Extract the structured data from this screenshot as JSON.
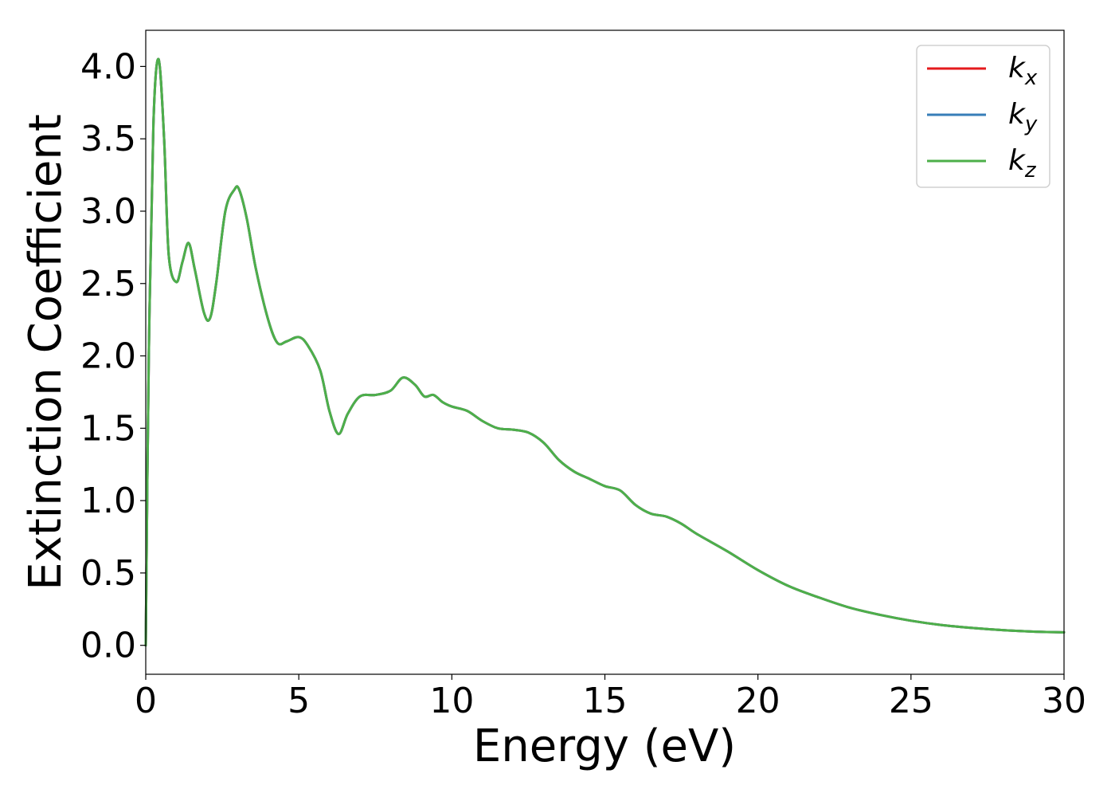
{
  "chart_data": {
    "type": "line",
    "title": "",
    "xlabel": "Energy (eV)",
    "ylabel": "Extinction Coefficient",
    "xlim": [
      0,
      30
    ],
    "ylim": [
      -0.2,
      4.25
    ],
    "x_ticks": [
      0,
      5,
      10,
      15,
      20,
      25,
      30
    ],
    "y_ticks": [
      0.0,
      0.5,
      1.0,
      1.5,
      2.0,
      2.5,
      3.0,
      3.5,
      4.0
    ],
    "grid": false,
    "legend_position": "top-right",
    "series": [
      {
        "name": "k_x",
        "label_main": "k",
        "label_sub": "x",
        "color": "#e41a1c",
        "x": [
          0,
          0.1,
          0.25,
          0.42,
          0.6,
          0.75,
          1.0,
          1.2,
          1.4,
          1.6,
          1.9,
          2.1,
          2.3,
          2.6,
          2.9,
          3.05,
          3.3,
          3.6,
          4.0,
          4.3,
          4.6,
          5.0,
          5.3,
          5.7,
          6.0,
          6.3,
          6.6,
          7.0,
          7.5,
          8.0,
          8.4,
          8.8,
          9.1,
          9.4,
          9.7,
          10.0,
          10.5,
          11.0,
          11.5,
          12.0,
          12.5,
          13.0,
          13.5,
          14.0,
          14.5,
          15.0,
          15.5,
          16.0,
          16.5,
          17.0,
          17.5,
          18.0,
          19.0,
          20.0,
          21.0,
          22.0,
          23.0,
          24.0,
          25.0,
          26.0,
          27.0,
          28.0,
          29.0,
          30.0
        ],
        "values": [
          0.0,
          2.0,
          3.6,
          4.05,
          3.5,
          2.7,
          2.51,
          2.65,
          2.78,
          2.6,
          2.3,
          2.26,
          2.5,
          3.0,
          3.15,
          3.15,
          2.95,
          2.6,
          2.25,
          2.09,
          2.1,
          2.13,
          2.07,
          1.9,
          1.62,
          1.46,
          1.6,
          1.72,
          1.73,
          1.76,
          1.85,
          1.8,
          1.72,
          1.73,
          1.68,
          1.65,
          1.62,
          1.55,
          1.5,
          1.49,
          1.47,
          1.4,
          1.28,
          1.2,
          1.15,
          1.1,
          1.07,
          0.97,
          0.91,
          0.89,
          0.84,
          0.77,
          0.65,
          0.52,
          0.41,
          0.33,
          0.26,
          0.21,
          0.17,
          0.14,
          0.12,
          0.105,
          0.095,
          0.09
        ]
      },
      {
        "name": "k_y",
        "label_main": "k",
        "label_sub": "y",
        "color": "#377eb8",
        "x": [
          0,
          0.1,
          0.25,
          0.42,
          0.6,
          0.75,
          1.0,
          1.2,
          1.4,
          1.6,
          1.9,
          2.1,
          2.3,
          2.6,
          2.9,
          3.05,
          3.3,
          3.6,
          4.0,
          4.3,
          4.6,
          5.0,
          5.3,
          5.7,
          6.0,
          6.3,
          6.6,
          7.0,
          7.5,
          8.0,
          8.4,
          8.8,
          9.1,
          9.4,
          9.7,
          10.0,
          10.5,
          11.0,
          11.5,
          12.0,
          12.5,
          13.0,
          13.5,
          14.0,
          14.5,
          15.0,
          15.5,
          16.0,
          16.5,
          17.0,
          17.5,
          18.0,
          19.0,
          20.0,
          21.0,
          22.0,
          23.0,
          24.0,
          25.0,
          26.0,
          27.0,
          28.0,
          29.0,
          30.0
        ],
        "values": [
          0.0,
          2.0,
          3.6,
          4.05,
          3.5,
          2.7,
          2.51,
          2.65,
          2.78,
          2.6,
          2.3,
          2.26,
          2.5,
          3.0,
          3.15,
          3.15,
          2.95,
          2.6,
          2.25,
          2.09,
          2.1,
          2.13,
          2.07,
          1.9,
          1.62,
          1.46,
          1.6,
          1.72,
          1.73,
          1.76,
          1.85,
          1.8,
          1.72,
          1.73,
          1.68,
          1.65,
          1.62,
          1.55,
          1.5,
          1.49,
          1.47,
          1.4,
          1.28,
          1.2,
          1.15,
          1.1,
          1.07,
          0.97,
          0.91,
          0.89,
          0.84,
          0.77,
          0.65,
          0.52,
          0.41,
          0.33,
          0.26,
          0.21,
          0.17,
          0.14,
          0.12,
          0.105,
          0.095,
          0.09
        ]
      },
      {
        "name": "k_z",
        "label_main": "k",
        "label_sub": "z",
        "color": "#4daf4a",
        "x": [
          0,
          0.1,
          0.25,
          0.42,
          0.6,
          0.75,
          1.0,
          1.2,
          1.4,
          1.6,
          1.9,
          2.1,
          2.3,
          2.6,
          2.9,
          3.05,
          3.3,
          3.6,
          4.0,
          4.3,
          4.6,
          5.0,
          5.3,
          5.7,
          6.0,
          6.3,
          6.6,
          7.0,
          7.5,
          8.0,
          8.4,
          8.8,
          9.1,
          9.4,
          9.7,
          10.0,
          10.5,
          11.0,
          11.5,
          12.0,
          12.5,
          13.0,
          13.5,
          14.0,
          14.5,
          15.0,
          15.5,
          16.0,
          16.5,
          17.0,
          17.5,
          18.0,
          19.0,
          20.0,
          21.0,
          22.0,
          23.0,
          24.0,
          25.0,
          26.0,
          27.0,
          28.0,
          29.0,
          30.0
        ],
        "values": [
          0.0,
          2.0,
          3.6,
          4.05,
          3.5,
          2.7,
          2.51,
          2.65,
          2.78,
          2.6,
          2.3,
          2.26,
          2.5,
          3.0,
          3.15,
          3.15,
          2.95,
          2.6,
          2.25,
          2.09,
          2.1,
          2.13,
          2.07,
          1.9,
          1.62,
          1.46,
          1.6,
          1.72,
          1.73,
          1.76,
          1.85,
          1.8,
          1.72,
          1.73,
          1.68,
          1.65,
          1.62,
          1.55,
          1.5,
          1.49,
          1.47,
          1.4,
          1.28,
          1.2,
          1.15,
          1.1,
          1.07,
          0.97,
          0.91,
          0.89,
          0.84,
          0.77,
          0.65,
          0.52,
          0.41,
          0.33,
          0.26,
          0.21,
          0.17,
          0.14,
          0.12,
          0.105,
          0.095,
          0.09
        ]
      }
    ]
  }
}
